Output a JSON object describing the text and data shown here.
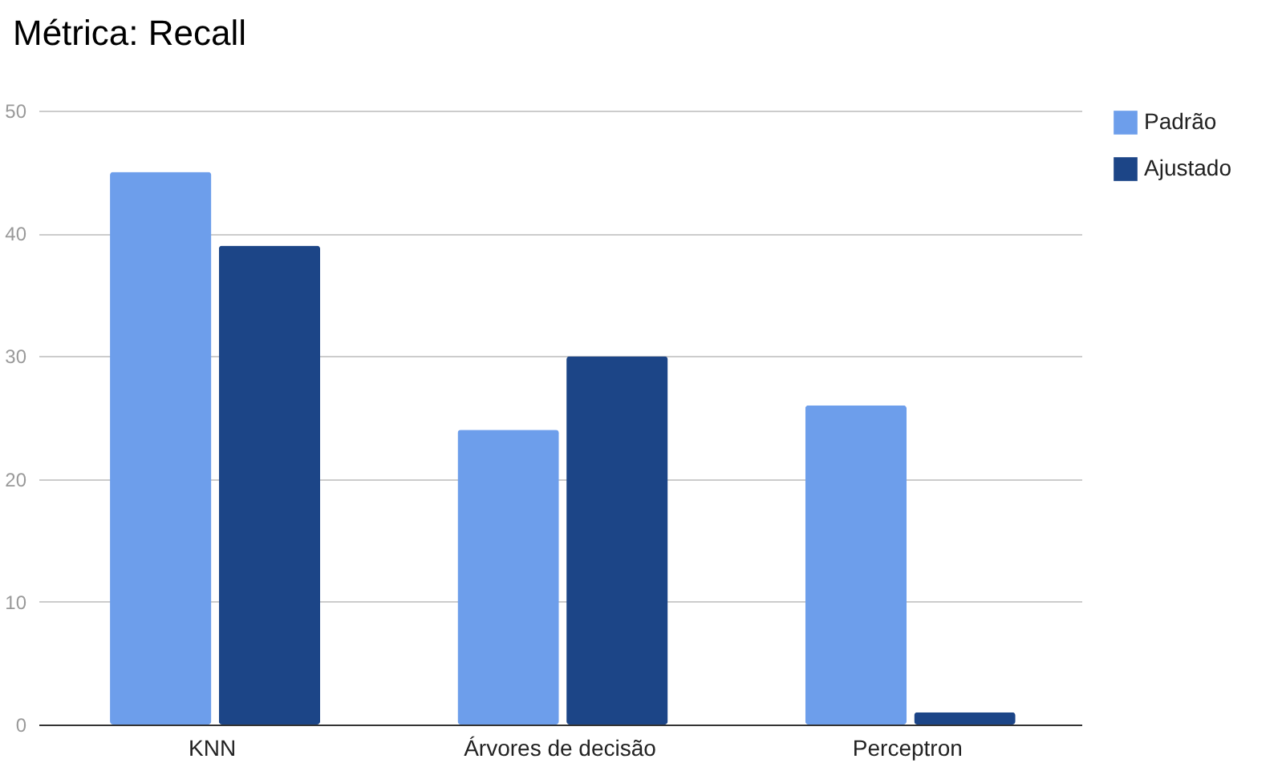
{
  "chart_data": {
    "type": "bar",
    "title": "Métrica: Recall",
    "categories": [
      "KNN",
      "Árvores de decisão",
      "Perceptron"
    ],
    "series": [
      {
        "name": "Padrão",
        "color": "#6d9eeb",
        "values": [
          45,
          24,
          26
        ]
      },
      {
        "name": "Ajustado",
        "color": "#1c4587",
        "values": [
          39,
          30,
          1
        ]
      }
    ],
    "ylim": [
      0,
      50
    ],
    "yticks": [
      0,
      10,
      20,
      30,
      40,
      50
    ],
    "grid": "y",
    "legend": "top right"
  }
}
